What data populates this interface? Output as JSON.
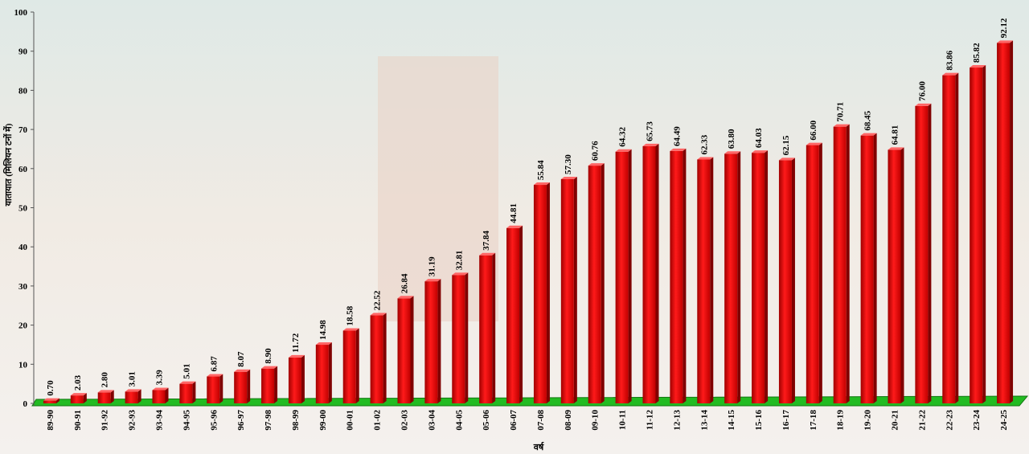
{
  "chart_data": {
    "type": "bar",
    "y_label": "यातायात (मिलियन टनों में)",
    "x_label": "वर्ष",
    "categories": [
      "89-90",
      "90-91",
      "91-92",
      "92-93",
      "93-94",
      "94-95",
      "95-96",
      "96-97",
      "97-98",
      "98-99",
      "99-00",
      "00-01",
      "01-02",
      "02-03",
      "03-04",
      "04-05",
      "05-06",
      "06-07",
      "07-08",
      "08-09",
      "09-10",
      "10-11",
      "11-12",
      "12-13",
      "13-14",
      "14-15",
      "15-16",
      "16-17",
      "17-18",
      "18-19",
      "19-20",
      "20-21",
      "21-22",
      "22-23",
      "23-24",
      "24-25"
    ],
    "values": [
      0.7,
      2.03,
      2.8,
      3.01,
      3.39,
      5.01,
      6.87,
      8.07,
      8.9,
      11.72,
      14.98,
      18.58,
      22.52,
      26.84,
      31.19,
      32.81,
      37.84,
      44.81,
      55.84,
      57.3,
      60.76,
      64.32,
      65.73,
      64.49,
      62.33,
      63.8,
      64.03,
      62.15,
      66.0,
      70.71,
      68.45,
      64.81,
      76.0,
      83.86,
      85.82,
      92.12
    ],
    "value_labels": [
      "0.70",
      "2.03",
      "2.80",
      "3.01",
      "3.39",
      "5.01",
      "6.87",
      "8.07",
      "8.90",
      "11.72",
      "14.98",
      "18.58",
      "22.52",
      "26.84",
      "31.19",
      "32.81",
      "37.84",
      "44.81",
      "55.84",
      "57.30",
      "60.76",
      "64.32",
      "65.73",
      "64.49",
      "62.33",
      "63.80",
      "64.03",
      "62.15",
      "66.00",
      "70.71",
      "68.45",
      "64.81",
      "76.00",
      "83.86",
      "85.82",
      "92.12"
    ],
    "color": "#ff0000",
    "ylim": [
      0,
      100
    ],
    "yticks": [
      0,
      10,
      20,
      30,
      40,
      50,
      60,
      70,
      80,
      90,
      100
    ]
  }
}
